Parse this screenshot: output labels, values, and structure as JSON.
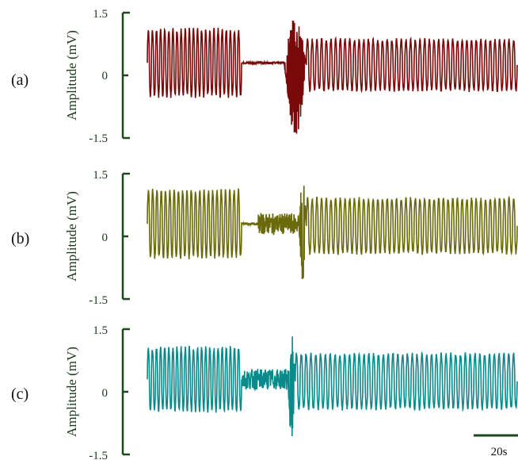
{
  "chart_data": [
    {
      "type": "line",
      "panel_label": "(a)",
      "ylabel": "Amplitude  (mV)",
      "ylim": [
        -1.5,
        1.5
      ],
      "yticks": [
        "1.5",
        "0",
        "-1.5"
      ],
      "grid": false,
      "series": [
        {
          "color": "#7a0a0a",
          "segments": [
            {
              "kind": "oscillation",
              "t": [
                0,
                0.255
              ],
              "center": 0.3,
              "amplitude": 0.85,
              "cycles": 23
            },
            {
              "kind": "flat",
              "t": [
                0.255,
                0.37
              ],
              "level": 0.3
            },
            {
              "kind": "burst",
              "t": [
                0.37,
                0.43
              ],
              "max": 1.4,
              "min": -1.5
            },
            {
              "kind": "oscillation",
              "t": [
                0.43,
                1.0
              ],
              "center": 0.25,
              "amplitude": 0.65,
              "cycles": 45
            }
          ]
        }
      ]
    },
    {
      "type": "line",
      "panel_label": "(b)",
      "ylabel": "Amplitude  (mV)",
      "ylim": [
        -1.5,
        1.5
      ],
      "yticks": [
        "1.5",
        "0",
        "-1.5"
      ],
      "grid": false,
      "series": [
        {
          "color": "#6b6a0a",
          "segments": [
            {
              "kind": "oscillation",
              "t": [
                0,
                0.255
              ],
              "center": 0.3,
              "amplitude": 0.85,
              "cycles": 22
            },
            {
              "kind": "flat",
              "t": [
                0.255,
                0.3
              ],
              "level": 0.3
            },
            {
              "kind": "noisy",
              "t": [
                0.3,
                0.41
              ],
              "center": 0.3,
              "amplitude": 0.25
            },
            {
              "kind": "burst",
              "t": [
                0.41,
                0.43
              ],
              "max": 1.4,
              "min": -1.1
            },
            {
              "kind": "oscillation",
              "t": [
                0.43,
                1.0
              ],
              "center": 0.25,
              "amplitude": 0.7,
              "cycles": 45
            }
          ]
        }
      ]
    },
    {
      "type": "line",
      "panel_label": "(c)",
      "ylabel": "Amplitude  (mV)",
      "ylim": [
        -1.5,
        1.5
      ],
      "yticks": [
        "1.5",
        "0",
        "-1.5"
      ],
      "grid": false,
      "series": [
        {
          "color": "#0a8a8a",
          "segments": [
            {
              "kind": "oscillation",
              "t": [
                0,
                0.255
              ],
              "center": 0.3,
              "amplitude": 0.8,
              "cycles": 23
            },
            {
              "kind": "noisy",
              "t": [
                0.255,
                0.38
              ],
              "center": 0.3,
              "amplitude": 0.25
            },
            {
              "kind": "burst",
              "t": [
                0.38,
                0.4
              ],
              "max": 1.4,
              "min": -1.1
            },
            {
              "kind": "oscillation",
              "t": [
                0.4,
                1.0
              ],
              "center": 0.25,
              "amplitude": 0.7,
              "cycles": 46
            }
          ]
        }
      ]
    }
  ],
  "scale_bar": {
    "label": "20s"
  },
  "axis_color": "#1a4a1a"
}
